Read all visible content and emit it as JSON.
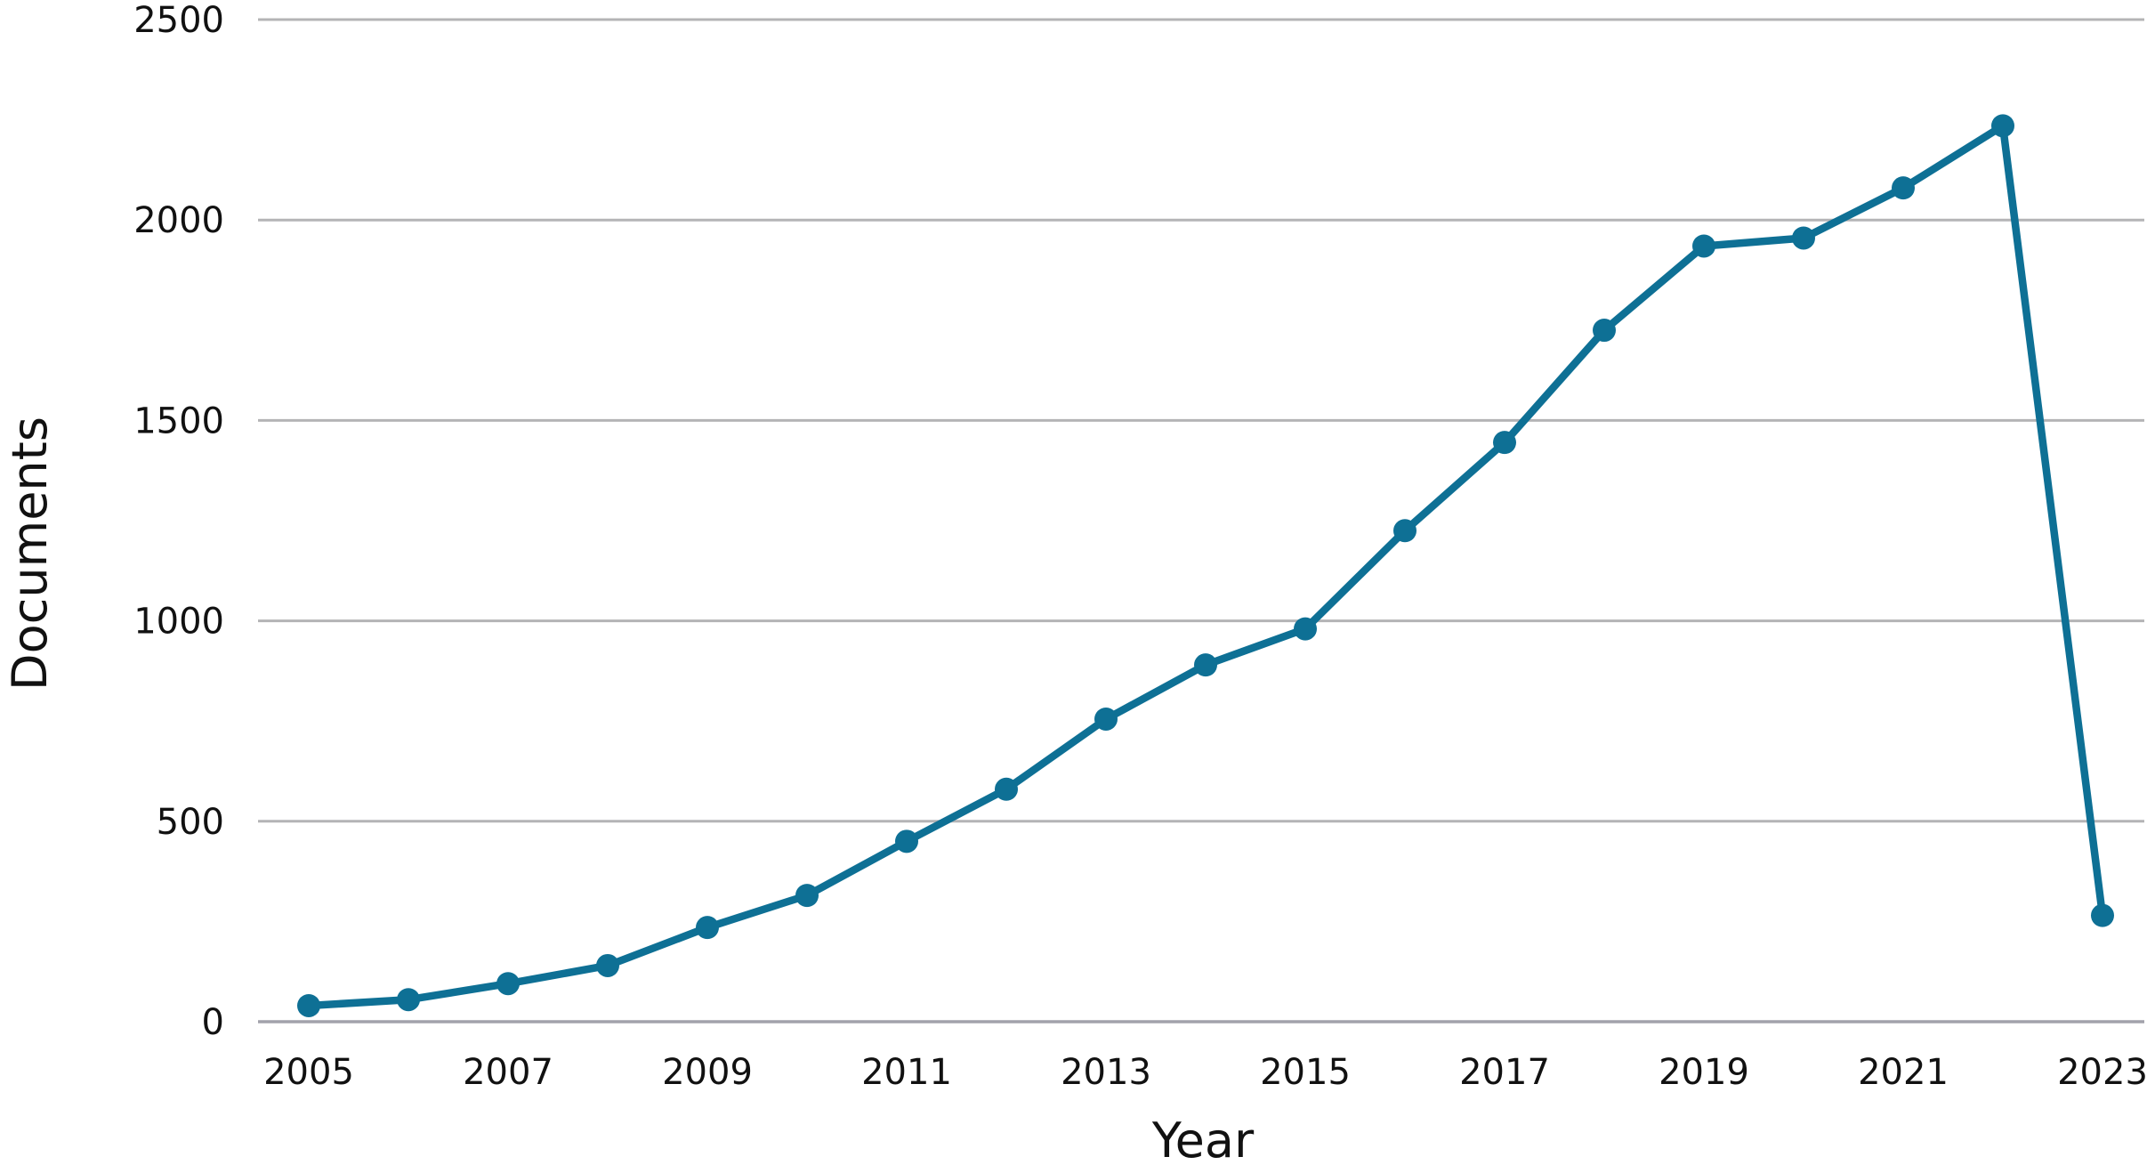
{
  "chart_data": {
    "type": "line",
    "title": "",
    "xlabel": "Year",
    "ylabel": "Documents",
    "x": [
      2005,
      2006,
      2007,
      2008,
      2009,
      2010,
      2011,
      2012,
      2013,
      2014,
      2015,
      2016,
      2017,
      2018,
      2019,
      2020,
      2021,
      2022,
      2023
    ],
    "series": [
      {
        "name": "Documents",
        "values": [
          40,
          55,
          95,
          140,
          235,
          315,
          450,
          580,
          755,
          890,
          980,
          1225,
          1445,
          1725,
          1935,
          1955,
          2080,
          2235,
          265
        ]
      }
    ],
    "xticks": [
      2005,
      2007,
      2009,
      2011,
      2013,
      2015,
      2017,
      2019,
      2021,
      2023
    ],
    "yticks": [
      0,
      500,
      1000,
      1500,
      2000,
      2500
    ],
    "ylim": [
      0,
      2500
    ],
    "grid": true,
    "legend_position": "none",
    "marker": "circle",
    "colors": {
      "line": "#0e7095",
      "marker": "#0e7095",
      "gridline": "#b4b4b6",
      "baseline": "#a2a2ab",
      "text": "#111111",
      "background": "#ffffff"
    }
  }
}
